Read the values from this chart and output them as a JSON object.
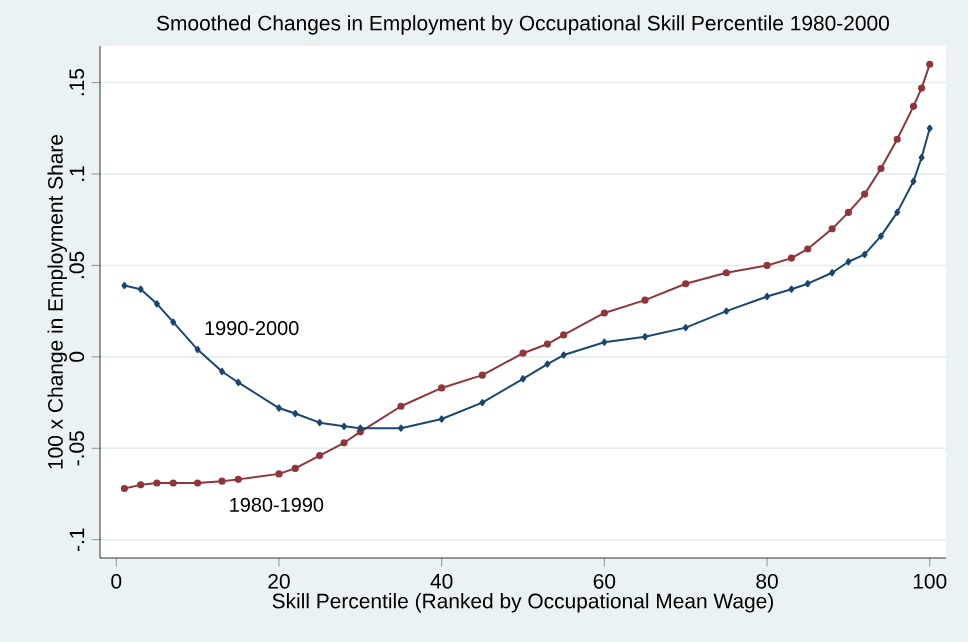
{
  "chart_data": {
    "type": "line",
    "title": "Smoothed Changes in Employment by Occupational Skill Percentile 1980-2000",
    "xlabel": "Skill Percentile (Ranked by Occupational Mean Wage)",
    "ylabel": "100 x Change in Employment Share",
    "x": [
      1,
      3,
      5,
      7,
      10,
      13,
      15,
      20,
      22,
      25,
      28,
      30,
      35,
      40,
      45,
      50,
      53,
      55,
      60,
      65,
      70,
      75,
      80,
      83,
      85,
      88,
      90,
      92,
      94,
      96,
      98,
      99,
      100
    ],
    "series": [
      {
        "name": "1980-1990",
        "color": "#90353b",
        "marker": "circle",
        "values": [
          -0.072,
          -0.07,
          -0.069,
          -0.069,
          -0.069,
          -0.068,
          -0.067,
          -0.064,
          -0.061,
          -0.054,
          -0.047,
          -0.041,
          -0.027,
          -0.017,
          -0.01,
          0.002,
          0.007,
          0.012,
          0.024,
          0.031,
          0.04,
          0.046,
          0.05,
          0.054,
          0.059,
          0.07,
          0.079,
          0.089,
          0.103,
          0.119,
          0.137,
          0.147,
          0.16
        ]
      },
      {
        "name": "1990-2000",
        "color": "#1a476f",
        "marker": "diamond",
        "values": [
          0.039,
          0.037,
          0.029,
          0.019,
          0.004,
          -0.008,
          -0.014,
          -0.028,
          -0.031,
          -0.036,
          -0.038,
          -0.039,
          -0.039,
          -0.034,
          -0.025,
          -0.012,
          -0.004,
          0.001,
          0.008,
          0.011,
          0.016,
          0.025,
          0.033,
          0.037,
          0.04,
          0.046,
          0.052,
          0.056,
          0.066,
          0.079,
          0.096,
          0.109,
          0.125
        ]
      }
    ],
    "xlim": [
      -2,
      102
    ],
    "ylim": [
      -0.11,
      0.17
    ],
    "xticks": [
      0,
      20,
      40,
      60,
      80,
      100
    ],
    "yticks": [
      {
        "value": -0.1,
        "label": "-.1"
      },
      {
        "value": -0.05,
        "label": "-.05"
      },
      {
        "value": 0,
        "label": "0"
      },
      {
        "value": 0.05,
        "label": ".05"
      },
      {
        "value": 0.1,
        "label": ".1"
      },
      {
        "value": 0.15,
        "label": ".15"
      }
    ],
    "grid": "y",
    "legend": false
  }
}
